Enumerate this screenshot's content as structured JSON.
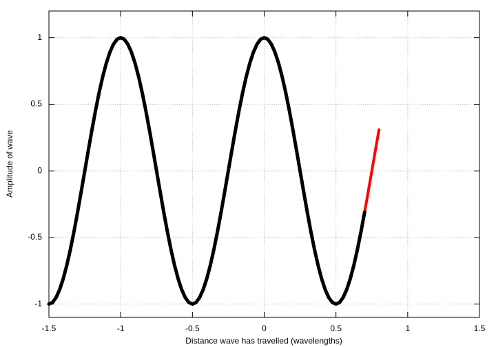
{
  "chart_data": {
    "type": "line",
    "x_label": "Distance wave has travelled (wavelengths)",
    "y_label": "Amplitude of wave",
    "xlim": [
      -1.5,
      1.5
    ],
    "ylim": [
      -1.1,
      1.2
    ],
    "xticks": [
      -1.5,
      -1,
      -0.5,
      0,
      0.5,
      1,
      1.5
    ],
    "yticks": [
      -1,
      -0.5,
      0,
      0.5,
      1
    ],
    "grid": true,
    "series": [
      {
        "color": "#ff0000",
        "x": [
          0.7,
          0.725,
          0.75,
          0.775,
          0.8
        ],
        "values": [
          -0.309,
          -0.156,
          0,
          0.156,
          0.309
        ]
      },
      {
        "color": "#000000",
        "x": [
          -1.5,
          -1.475,
          -1.45,
          -1.425,
          -1.4,
          -1.375,
          -1.35,
          -1.325,
          -1.3,
          -1.275,
          -1.25,
          -1.225,
          -1.2,
          -1.175,
          -1.15,
          -1.125,
          -1.1,
          -1.075,
          -1.05,
          -1.025,
          -1,
          -0.975,
          -0.95,
          -0.925,
          -0.9,
          -0.875,
          -0.85,
          -0.825,
          -0.8,
          -0.775,
          -0.75,
          -0.725,
          -0.7,
          -0.675,
          -0.65,
          -0.625,
          -0.6,
          -0.575,
          -0.55,
          -0.525,
          -0.5,
          -0.475,
          -0.45,
          -0.425,
          -0.4,
          -0.375,
          -0.35,
          -0.325,
          -0.3,
          -0.275,
          -0.25,
          -0.225,
          -0.2,
          -0.175,
          -0.15,
          -0.125,
          -0.1,
          -0.075,
          -0.05,
          -0.025,
          0,
          0.025,
          0.05,
          0.075,
          0.1,
          0.125,
          0.15,
          0.175,
          0.2,
          0.225,
          0.25,
          0.275,
          0.3,
          0.325,
          0.35,
          0.375,
          0.4,
          0.425,
          0.45,
          0.475,
          0.5,
          0.525,
          0.55,
          0.575,
          0.6,
          0.625,
          0.65,
          0.675,
          0.7
        ],
        "values": [
          -1,
          -0.988,
          -0.951,
          -0.891,
          -0.809,
          -0.707,
          -0.588,
          -0.454,
          -0.309,
          -0.156,
          0,
          0.156,
          0.309,
          0.454,
          0.588,
          0.707,
          0.809,
          0.891,
          0.951,
          0.988,
          1,
          0.988,
          0.951,
          0.891,
          0.809,
          0.707,
          0.588,
          0.454,
          0.309,
          0.156,
          0,
          -0.156,
          -0.309,
          -0.454,
          -0.588,
          -0.707,
          -0.809,
          -0.891,
          -0.951,
          -0.988,
          -1,
          -0.988,
          -0.951,
          -0.891,
          -0.809,
          -0.707,
          -0.588,
          -0.454,
          -0.309,
          -0.156,
          0,
          0.156,
          0.309,
          0.454,
          0.588,
          0.707,
          0.809,
          0.891,
          0.951,
          0.988,
          1,
          0.988,
          0.951,
          0.891,
          0.809,
          0.707,
          0.588,
          0.454,
          0.309,
          0.156,
          0,
          -0.156,
          -0.309,
          -0.454,
          -0.588,
          -0.707,
          -0.809,
          -0.891,
          -0.951,
          -0.988,
          -1,
          -0.988,
          -0.951,
          -0.891,
          -0.809,
          -0.707,
          -0.588,
          -0.454,
          -0.309
        ]
      }
    ]
  }
}
